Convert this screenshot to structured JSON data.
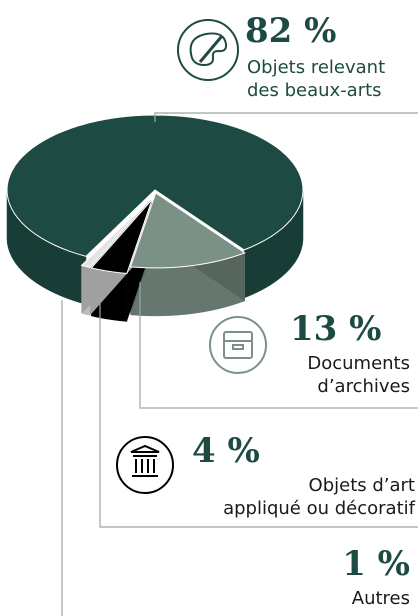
{
  "chart_data": {
    "type": "pie3d",
    "categories": [
      "Objets relevant\ndes beaux-arts",
      "Documents\nd’archives",
      "Objets d’art\nappliqué ou décoratif",
      "Autres"
    ],
    "values": [
      82,
      13,
      4,
      1
    ],
    "value_labels": [
      "82 %",
      "13 %",
      "4 %",
      "1 %"
    ],
    "colors": [
      "#1d4a42",
      "#7b9186",
      "#000000",
      "#e4e4e4"
    ]
  }
}
